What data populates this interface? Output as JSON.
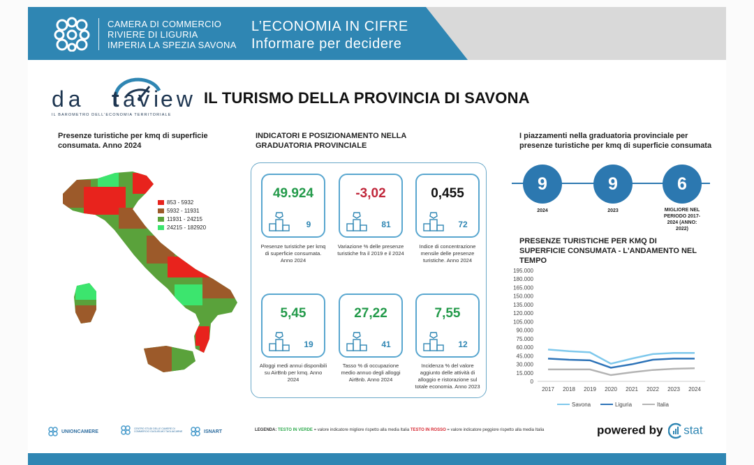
{
  "header": {
    "org_line1": "CAMERA DI COMMERCIO",
    "org_line2": "RIVIERE DI LIGURIA",
    "org_line3": "IMPERIA LA SPEZIA SAVONA",
    "tagline1": "L’ECONOMIA IN CIFRE",
    "tagline2": "Informare per decidere"
  },
  "brand": {
    "name_part1": "da",
    "name_part2": "a",
    "name_part3": "v",
    "name_part4": "ew",
    "subtitle": "IL BAROMETRO DELL’ECONOMIA TERRITORIALE"
  },
  "main_title": "IL TURISMO DELLA PROVINCIA DI SAVONA",
  "map_section": {
    "title": "Presenze turistiche per kmq di superficie consumata. Anno 2024",
    "legend": [
      {
        "label": "853 - 5932",
        "color": "#e8231d"
      },
      {
        "label": "5932 - 11931",
        "color": "#9c5a2a"
      },
      {
        "label": "11931 - 24215",
        "color": "#5aa23b"
      },
      {
        "label": "24215 - 182920",
        "color": "#3ce56e"
      }
    ]
  },
  "indicators": {
    "title": "INDICATORI E POSIZIONAMENTO NELLA GRADUATORIA PROVINCIALE",
    "cards": [
      {
        "value": "49.924",
        "rank": "9",
        "color": "#239a4a",
        "desc": "Presenze turistiche per kmq di superficie consumata. Anno 2024"
      },
      {
        "value": "-3,02",
        "rank": "81",
        "color": "#c0263a",
        "desc": "Variazione % delle presenze turistiche fra il 2019 e il 2024"
      },
      {
        "value": "0,455",
        "rank": "72",
        "color": "#111111",
        "desc": "Indice di concentrazione mensile delle presenze turistiche. Anno 2024"
      },
      {
        "value": "5,45",
        "rank": "19",
        "color": "#239a4a",
        "desc": "Alloggi medi annui disponibili su AirBnb per kmq. Anno 2024"
      },
      {
        "value": "27,22",
        "rank": "41",
        "color": "#239a4a",
        "desc": "Tasso % di occupazione medio annuo degli alloggi AirBnb. Anno 2024"
      },
      {
        "value": "7,55",
        "rank": "12",
        "color": "#239a4a",
        "desc": "Incidenza % del valore aggiunto delle attività di alloggio e ristorazione sul totale economia. Anno 2023"
      }
    ]
  },
  "ranking": {
    "title": "I piazzamenti nella graduatoria provinciale per presenze turistiche per kmq di superficie consumata",
    "items": [
      {
        "value": "9",
        "label": "2024"
      },
      {
        "value": "9",
        "label": "2023"
      },
      {
        "value": "6",
        "label": "MIGLIORE NEL PERIODO 2017-2024 (ANNO: 2022)"
      }
    ]
  },
  "chart_title": "PRESENZE TURISTICHE PER KMQ DI SUPERFICIE CONSUMATA - L'ANDAMENTO NEL TEMPO",
  "chart_data": {
    "type": "line",
    "title": "PRESENZE TURISTICHE PER KMQ DI SUPERFICIE CONSUMATA - L'ANDAMENTO NEL TEMPO",
    "categories": [
      "2017",
      "2018",
      "2019",
      "2020",
      "2021",
      "2022",
      "2023",
      "2024"
    ],
    "ylim": [
      0,
      195000
    ],
    "yticks": [
      "0",
      "15.000",
      "30.000",
      "45.000",
      "60.000",
      "75.000",
      "90.000",
      "105.000",
      "120.000",
      "135.000",
      "150.000",
      "165.000",
      "180.000",
      "195.000"
    ],
    "ytick_values": [
      0,
      15000,
      30000,
      45000,
      60000,
      75000,
      90000,
      105000,
      120000,
      135000,
      150000,
      165000,
      180000,
      195000
    ],
    "series": [
      {
        "name": "Savona",
        "color": "#7ec8ec",
        "values": [
          56000,
          53000,
          51000,
          31000,
          40000,
          48000,
          50000,
          50000
        ]
      },
      {
        "name": "Liguria",
        "color": "#2d73b8",
        "values": [
          40000,
          38000,
          37000,
          24000,
          30000,
          38000,
          40000,
          40000
        ]
      },
      {
        "name": "Italia",
        "color": "#b3b3b3",
        "values": [
          21000,
          21000,
          21000,
          11000,
          16000,
          20000,
          22000,
          23000
        ]
      }
    ]
  },
  "footer": {
    "logo1": "UNIONCAMERE",
    "logo2": "CENTRO STUDI DELLE CAMERE DI COMMERCIO GUGLIELMO TAGLIACARNE",
    "logo3": "ISNART",
    "legend_label": "LEGENDA:",
    "legend_green": "TESTO IN VERDE",
    "legend_green_desc": "= valore indicatore migliore rispetto alla media Italia",
    "legend_red": "TESTO IN ROSSO",
    "legend_red_desc": "= valore indicatore peggiore rispetto alla media Italia",
    "powered_by": "powered by",
    "powered_brand": "stat"
  }
}
